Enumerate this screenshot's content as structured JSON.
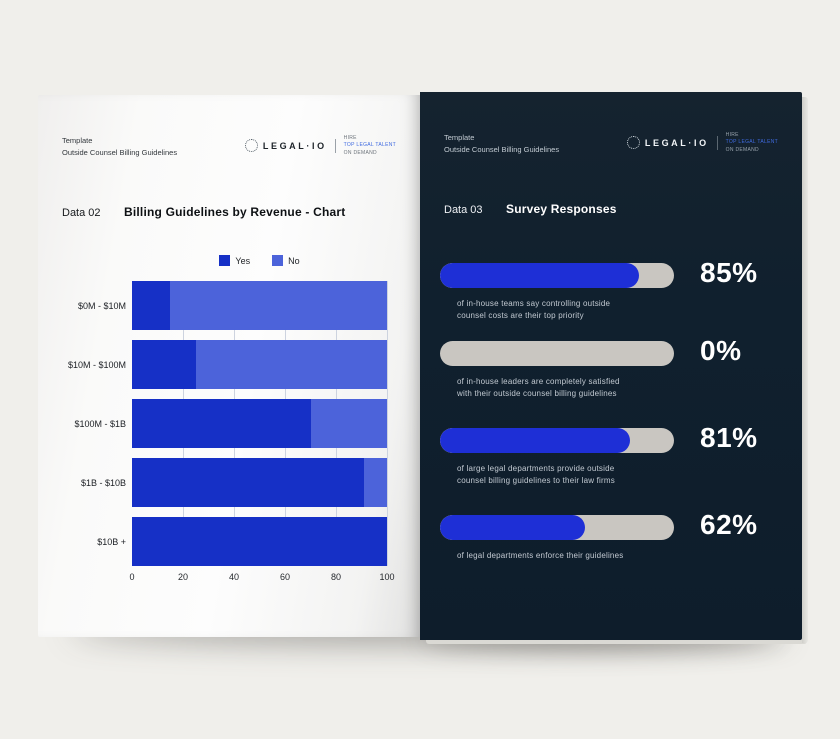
{
  "brand": {
    "wordmark": "LEGAL·IO",
    "tagline_line1": "HIRE",
    "tagline_line2": "TOP LEGAL TALENT",
    "tagline_line3": "ON DEMAND"
  },
  "left_page": {
    "header": {
      "line1": "Template",
      "line2": "Outside Counsel Billing Guidelines"
    },
    "section_label": "Data 02",
    "title": "Billing Guidelines by Revenue - Chart"
  },
  "right_page": {
    "header": {
      "line1": "Template",
      "line2": "Outside Counsel Billing Guidelines"
    },
    "section_label": "Data 03",
    "title": "Survey Responses"
  },
  "chart_data": [
    {
      "type": "bar",
      "orientation": "horizontal",
      "stacked": true,
      "title": "Billing Guidelines by Revenue - Chart",
      "categories": [
        "$0M - $10M",
        "$10M - $100M",
        "$100M - $1B",
        "$1B - $10B",
        "$10B +"
      ],
      "series": [
        {
          "name": "Yes",
          "color": "#1630c6",
          "values": [
            15,
            25,
            70,
            91,
            100
          ]
        },
        {
          "name": "No",
          "color": "#4c63da",
          "values": [
            85,
            75,
            30,
            9,
            0
          ]
        }
      ],
      "xlabel": "",
      "ylabel": "",
      "xlim": [
        0,
        100
      ],
      "xticks": [
        0,
        20,
        40,
        60,
        80,
        100
      ],
      "grid": true,
      "legend_position": "top"
    },
    {
      "type": "bar",
      "subtype": "progress-pills",
      "title": "Survey Responses",
      "max": 100,
      "bar_color": "#1e2fd6",
      "track_color": "#c9c6c1",
      "items": [
        {
          "value": 85,
          "percent_label": "85%",
          "caption_lines": [
            "of in-house teams say controlling outside",
            "counsel costs are their top priority"
          ]
        },
        {
          "value": 0,
          "percent_label": "0%",
          "caption_lines": [
            "of in-house leaders are completely satisfied",
            "with their outside counsel billing guidelines"
          ]
        },
        {
          "value": 81,
          "percent_label": "81%",
          "caption_lines": [
            "of large legal departments provide outside",
            "counsel billing guidelines to their law firms"
          ]
        },
        {
          "value": 62,
          "percent_label": "62%",
          "caption_lines": [
            "of legal departments enforce their guidelines"
          ]
        }
      ]
    }
  ],
  "layout_values": {
    "survey_item_tops": [
      171,
      249,
      336,
      423
    ]
  }
}
